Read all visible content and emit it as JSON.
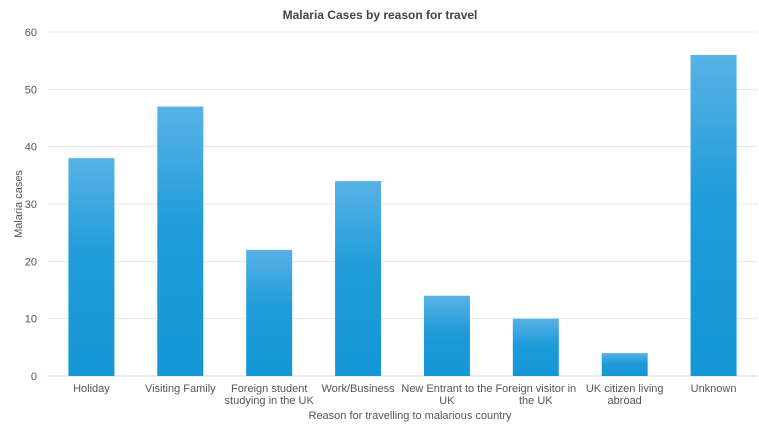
{
  "chart_data": {
    "type": "bar",
    "title": "Malaria Cases by reason for travel",
    "xlabel": "Reason for travelling to malarious country",
    "ylabel": "Malaria cases",
    "ylim": [
      0,
      60
    ],
    "yticks": [
      0,
      10,
      20,
      30,
      40,
      50,
      60
    ],
    "grid": true,
    "legend": "none",
    "categories": [
      [
        "Holiday"
      ],
      [
        "Visiting Family"
      ],
      [
        "Foreign student",
        "studying in the UK"
      ],
      [
        "Work/Business"
      ],
      [
        "New Entrant to the",
        "UK"
      ],
      [
        "Foreign visitor in",
        "the UK"
      ],
      [
        "UK citizen living",
        "abroad"
      ],
      [
        "Unknown"
      ]
    ],
    "values": [
      38,
      47,
      22,
      34,
      14,
      10,
      4,
      56
    ],
    "colors": {
      "bar_top": "#58b2e5",
      "bar_bottom": "#1596d6",
      "grid": "#e8e8e8"
    }
  }
}
